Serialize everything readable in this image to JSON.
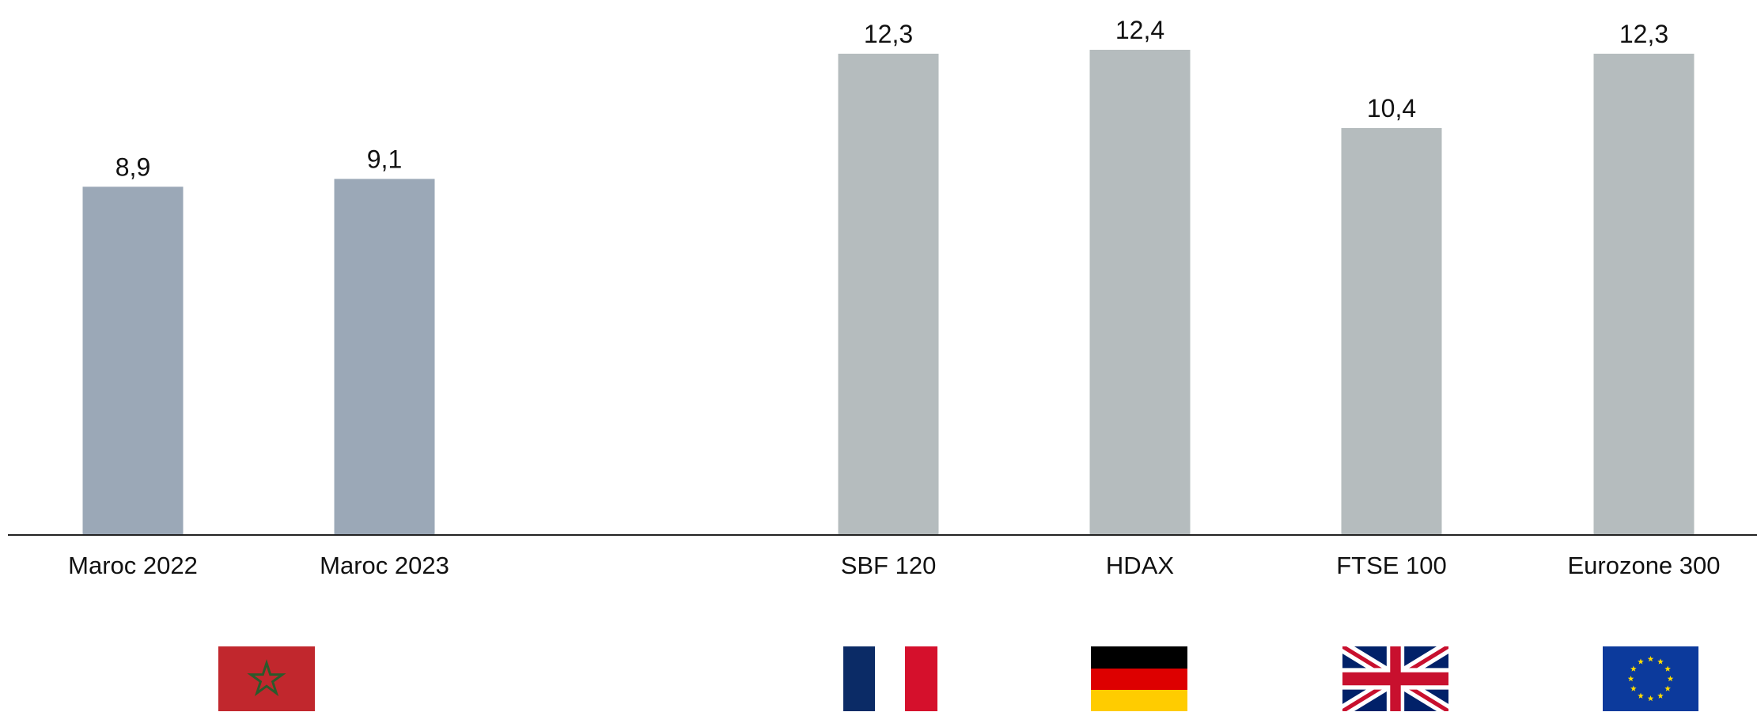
{
  "chart_data": {
    "type": "bar",
    "categories": [
      "Maroc 2022",
      "Maroc 2023",
      "SBF 120",
      "HDAX",
      "FTSE 100",
      "Eurozone 300"
    ],
    "values": [
      8.9,
      9.1,
      12.3,
      12.4,
      10.4,
      12.3
    ],
    "value_labels": [
      "8,9",
      "9,1",
      "12,3",
      "12,4",
      "10,4",
      "12,3"
    ],
    "bar_colors": [
      "#9ba8b7",
      "#9ba8b7",
      "#b5bcbe",
      "#b5bcbe",
      "#b5bcbe",
      "#b5bcbe"
    ],
    "flags": [
      "morocco-flag-icon",
      null,
      "france-flag-icon",
      "germany-flag-icon",
      "uk-flag-icon",
      "eu-flag-icon"
    ],
    "ylim": [
      0,
      12.6
    ],
    "grid": false,
    "legend": "none"
  }
}
